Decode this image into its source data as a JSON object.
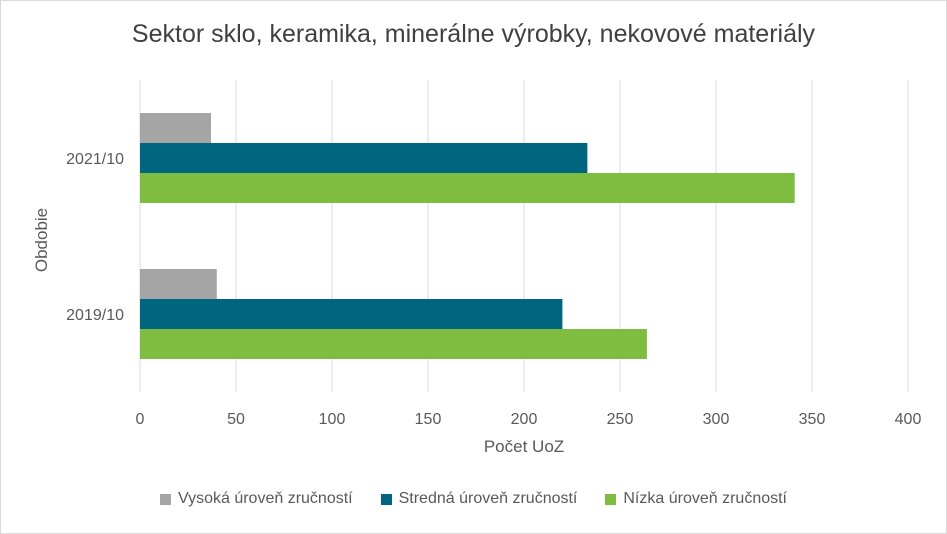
{
  "chart_data": {
    "type": "bar",
    "orientation": "horizontal",
    "title": "Sektor sklo, keramika, minerálne výrobky, nekovové materiály",
    "xlabel": "Počet UoZ",
    "ylabel": "Obdobie",
    "categories": [
      "2019/10",
      "2021/10"
    ],
    "xlim": [
      0,
      400
    ],
    "xticks": [
      0,
      50,
      100,
      150,
      200,
      250,
      300,
      350,
      400
    ],
    "grid": true,
    "legend_position": "bottom",
    "series": [
      {
        "name": "Vysoká úroveň zručností",
        "color": "#a5a5a5",
        "values": [
          40,
          37
        ]
      },
      {
        "name": "Stredná úroveň zručností",
        "color": "#00657f",
        "values": [
          220,
          233
        ]
      },
      {
        "name": "Nízka úroveň zručností",
        "color": "#7fbd41",
        "values": [
          264,
          341
        ]
      }
    ]
  }
}
